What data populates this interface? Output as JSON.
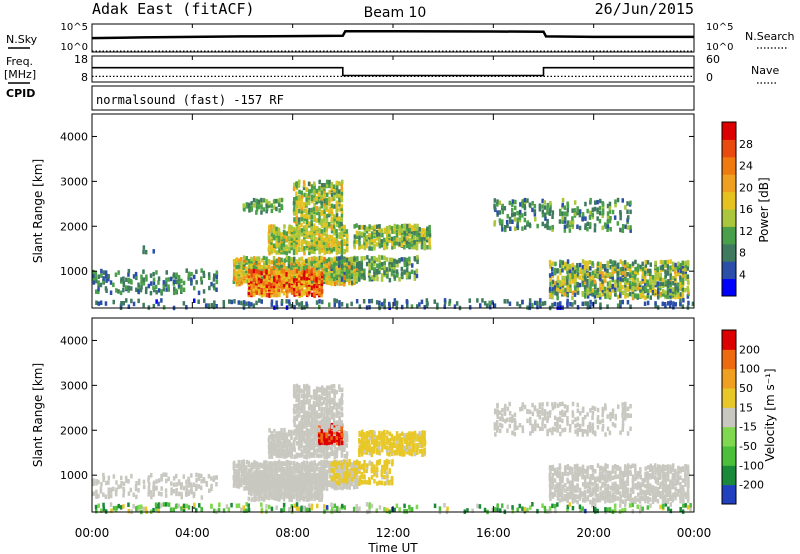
{
  "header": {
    "station": "Adak East (fitACF)",
    "beam": "Beam 10",
    "date": "26/Jun/2015"
  },
  "top_panel_labels": {
    "n_sky": "N.Sky",
    "freq_line1": "Freq.",
    "freq_line2": "[MHz]",
    "cpid": "CPID",
    "n_search": "N.Search",
    "nave": "Nave",
    "cpid_value": "normalsound (fast) -157 RF"
  },
  "noise_ticks": {
    "left": [
      "10^5",
      "10^0"
    ],
    "right": [
      "10^5",
      "10^0"
    ]
  },
  "freq_ticks": {
    "left": [
      "18",
      "8"
    ],
    "right": [
      "60",
      "0"
    ]
  },
  "x_ticks": [
    "00:00",
    "04:00",
    "08:00",
    "12:00",
    "16:00",
    "20:00",
    "00:00"
  ],
  "power_colorbar": {
    "label": "Power [dB]",
    "ticks": [
      "28",
      "24",
      "20",
      "16",
      "12",
      "8",
      "4"
    ]
  },
  "velocity_colorbar": {
    "label": "Velocity [m s⁻¹]",
    "ticks": [
      "200",
      "100",
      "50",
      "15",
      "-15",
      "-50",
      "-100",
      "-200"
    ]
  },
  "colors": {
    "power": [
      "#0000ff",
      "#2b4fa8",
      "#3f7a5e",
      "#4aa04a",
      "#a9c63c",
      "#e6c21f",
      "#f0a020",
      "#ee7a10",
      "#e84a10",
      "#dd0000"
    ],
    "velocity": [
      "#2040c0",
      "#1a8a3a",
      "#4bbf3a",
      "#80d850",
      "#c8c8c0",
      "#e8c828",
      "#f0a020",
      "#ee6a10",
      "#dd0000"
    ]
  },
  "chart_data": [
    {
      "type": "line",
      "panel": "noise",
      "x_unit": "hours UT",
      "xlim": [
        0,
        24
      ],
      "series": [
        {
          "name": "N.Sky",
          "x": [
            0,
            2,
            4,
            6,
            8,
            10,
            10.1,
            12,
            14,
            16,
            18,
            18.1,
            20,
            22,
            24
          ],
          "values": [
            300,
            400,
            500,
            600,
            700,
            800,
            5000,
            5000,
            4800,
            4500,
            4200,
            600,
            500,
            500,
            500
          ]
        },
        {
          "name": "N.Search",
          "x": [
            0,
            24
          ],
          "values": [
            1,
            1
          ]
        }
      ],
      "ylim": [
        1,
        100000
      ]
    },
    {
      "type": "line",
      "panel": "freq",
      "x_unit": "hours UT",
      "xlim": [
        0,
        24
      ],
      "series": [
        {
          "name": "Freq.",
          "x": [
            0,
            10,
            10,
            18,
            18,
            24
          ],
          "values": [
            13.5,
            13.5,
            10.5,
            10.5,
            13.5,
            13.5
          ],
          "units": "MHz"
        },
        {
          "name": "Nave",
          "x": [
            0,
            24
          ],
          "values": [
            13,
            13
          ]
        }
      ],
      "ylim_left": [
        8,
        18
      ],
      "ylim_right": [
        0,
        60
      ]
    },
    {
      "type": "heatmap",
      "panel": "power",
      "xlabel": "",
      "ylabel": "Slant Range [km]",
      "xlim": [
        0,
        24
      ],
      "ylim": [
        180,
        4500
      ],
      "yticks": [
        1000,
        2000,
        3000,
        4000
      ],
      "colorbar_label": "Power [dB]",
      "vlim": [
        0,
        32
      ],
      "features": [
        {
          "t": [
            0.0,
            24.0
          ],
          "r": [
            180,
            350
          ],
          "density": 0.22,
          "value": [
            3,
            10
          ]
        },
        {
          "t": [
            0.0,
            5.0
          ],
          "r": [
            500,
            1000
          ],
          "density": 0.25,
          "value": [
            4,
            12
          ]
        },
        {
          "t": [
            2.0,
            2.6
          ],
          "r": [
            1400,
            1600
          ],
          "density": 0.08,
          "value": [
            6,
            10
          ]
        },
        {
          "t": [
            5.6,
            10.6
          ],
          "r": [
            700,
            1300
          ],
          "density": 0.75,
          "value": [
            9,
            24
          ]
        },
        {
          "t": [
            6.2,
            9.2
          ],
          "r": [
            450,
            1000
          ],
          "density": 0.8,
          "value": [
            16,
            31
          ]
        },
        {
          "t": [
            7.0,
            10.2
          ],
          "r": [
            1400,
            2000
          ],
          "density": 0.7,
          "value": [
            10,
            20
          ]
        },
        {
          "t": [
            6.0,
            7.6
          ],
          "r": [
            2300,
            2600
          ],
          "density": 0.45,
          "value": [
            8,
            14
          ]
        },
        {
          "t": [
            8.0,
            10.0
          ],
          "r": [
            2000,
            3000
          ],
          "density": 0.55,
          "value": [
            8,
            20
          ]
        },
        {
          "t": [
            10.4,
            13.5
          ],
          "r": [
            1500,
            2000
          ],
          "density": 0.6,
          "value": [
            8,
            18
          ]
        },
        {
          "t": [
            9.5,
            13.0
          ],
          "r": [
            800,
            1300
          ],
          "density": 0.45,
          "value": [
            6,
            16
          ]
        },
        {
          "t": [
            16.0,
            21.5
          ],
          "r": [
            1900,
            2600
          ],
          "density": 0.25,
          "value": [
            5,
            14
          ]
        },
        {
          "t": [
            18.2,
            23.8
          ],
          "r": [
            400,
            1200
          ],
          "density": 0.55,
          "value": [
            5,
            20
          ]
        }
      ]
    },
    {
      "type": "heatmap",
      "panel": "velocity",
      "xlabel": "Time UT",
      "ylabel": "Slant Range [km]",
      "xlim": [
        0,
        24
      ],
      "ylim": [
        180,
        4500
      ],
      "yticks": [
        1000,
        2000,
        3000,
        4000
      ],
      "colorbar_label": "Velocity [m s⁻¹]",
      "vlim": [
        -250,
        250
      ],
      "features": [
        {
          "t": [
            0.0,
            24.0
          ],
          "r": [
            180,
            350
          ],
          "density": 0.22,
          "value": [
            -200,
            60
          ]
        },
        {
          "t": [
            0.0,
            5.0
          ],
          "r": [
            500,
            1000
          ],
          "density": 0.25,
          "value": [
            -10,
            10
          ]
        },
        {
          "t": [
            5.6,
            10.6
          ],
          "r": [
            700,
            1300
          ],
          "density": 0.75,
          "value": [
            -10,
            10
          ]
        },
        {
          "t": [
            6.2,
            9.2
          ],
          "r": [
            450,
            1000
          ],
          "density": 0.8,
          "value": [
            -10,
            10
          ]
        },
        {
          "t": [
            7.0,
            10.2
          ],
          "r": [
            1400,
            2000
          ],
          "density": 0.7,
          "value": [
            -10,
            10
          ]
        },
        {
          "t": [
            9.0,
            10.0
          ],
          "r": [
            1700,
            2150
          ],
          "density": 0.8,
          "value": [
            150,
            250
          ]
        },
        {
          "t": [
            10.6,
            13.3
          ],
          "r": [
            1450,
            1950
          ],
          "density": 0.7,
          "value": [
            25,
            60
          ]
        },
        {
          "t": [
            9.5,
            12.0
          ],
          "r": [
            800,
            1300
          ],
          "density": 0.45,
          "value": [
            20,
            80
          ]
        },
        {
          "t": [
            8.0,
            10.0
          ],
          "r": [
            2000,
            3000
          ],
          "density": 0.55,
          "value": [
            -10,
            10
          ]
        },
        {
          "t": [
            16.0,
            21.5
          ],
          "r": [
            1900,
            2600
          ],
          "density": 0.25,
          "value": [
            -10,
            10
          ]
        },
        {
          "t": [
            18.2,
            23.8
          ],
          "r": [
            400,
            1200
          ],
          "density": 0.55,
          "value": [
            -10,
            10
          ]
        }
      ]
    }
  ]
}
